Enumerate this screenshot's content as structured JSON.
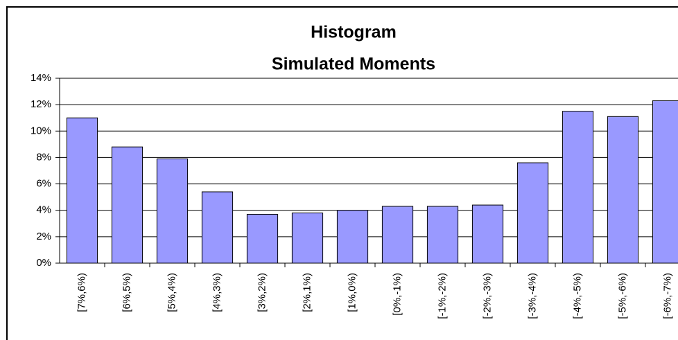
{
  "chart_data": {
    "type": "bar",
    "title": "Histogram",
    "subtitle": "Simulated Moments",
    "categories": [
      "[7%,6%)",
      "[6%,5%)",
      "[5%,4%)",
      "[4%,3%)",
      "[3%,2%)",
      "[2%,1%)",
      "[1%,0%)",
      "[0%,-1%)",
      "[-1%,-2%)",
      "[-2%,-3%)",
      "[-3%,-4%)",
      "[-4%,-5%)",
      "[-5%,-6%)",
      "[-6%,-7%)"
    ],
    "values": [
      11.0,
      8.8,
      7.9,
      5.4,
      3.7,
      3.8,
      4.0,
      4.3,
      4.3,
      4.4,
      7.6,
      11.5,
      11.1,
      12.3
    ],
    "color": "#9999ff",
    "ylim": [
      0,
      14
    ],
    "yticks": [
      {
        "value": 0,
        "label": "0%"
      },
      {
        "value": 2,
        "label": "2%"
      },
      {
        "value": 4,
        "label": "4%"
      },
      {
        "value": 6,
        "label": "6%"
      },
      {
        "value": 8,
        "label": "8%"
      },
      {
        "value": 10,
        "label": "10%"
      },
      {
        "value": 12,
        "label": "12%"
      },
      {
        "value": 14,
        "label": "14%"
      }
    ],
    "grid": true
  }
}
